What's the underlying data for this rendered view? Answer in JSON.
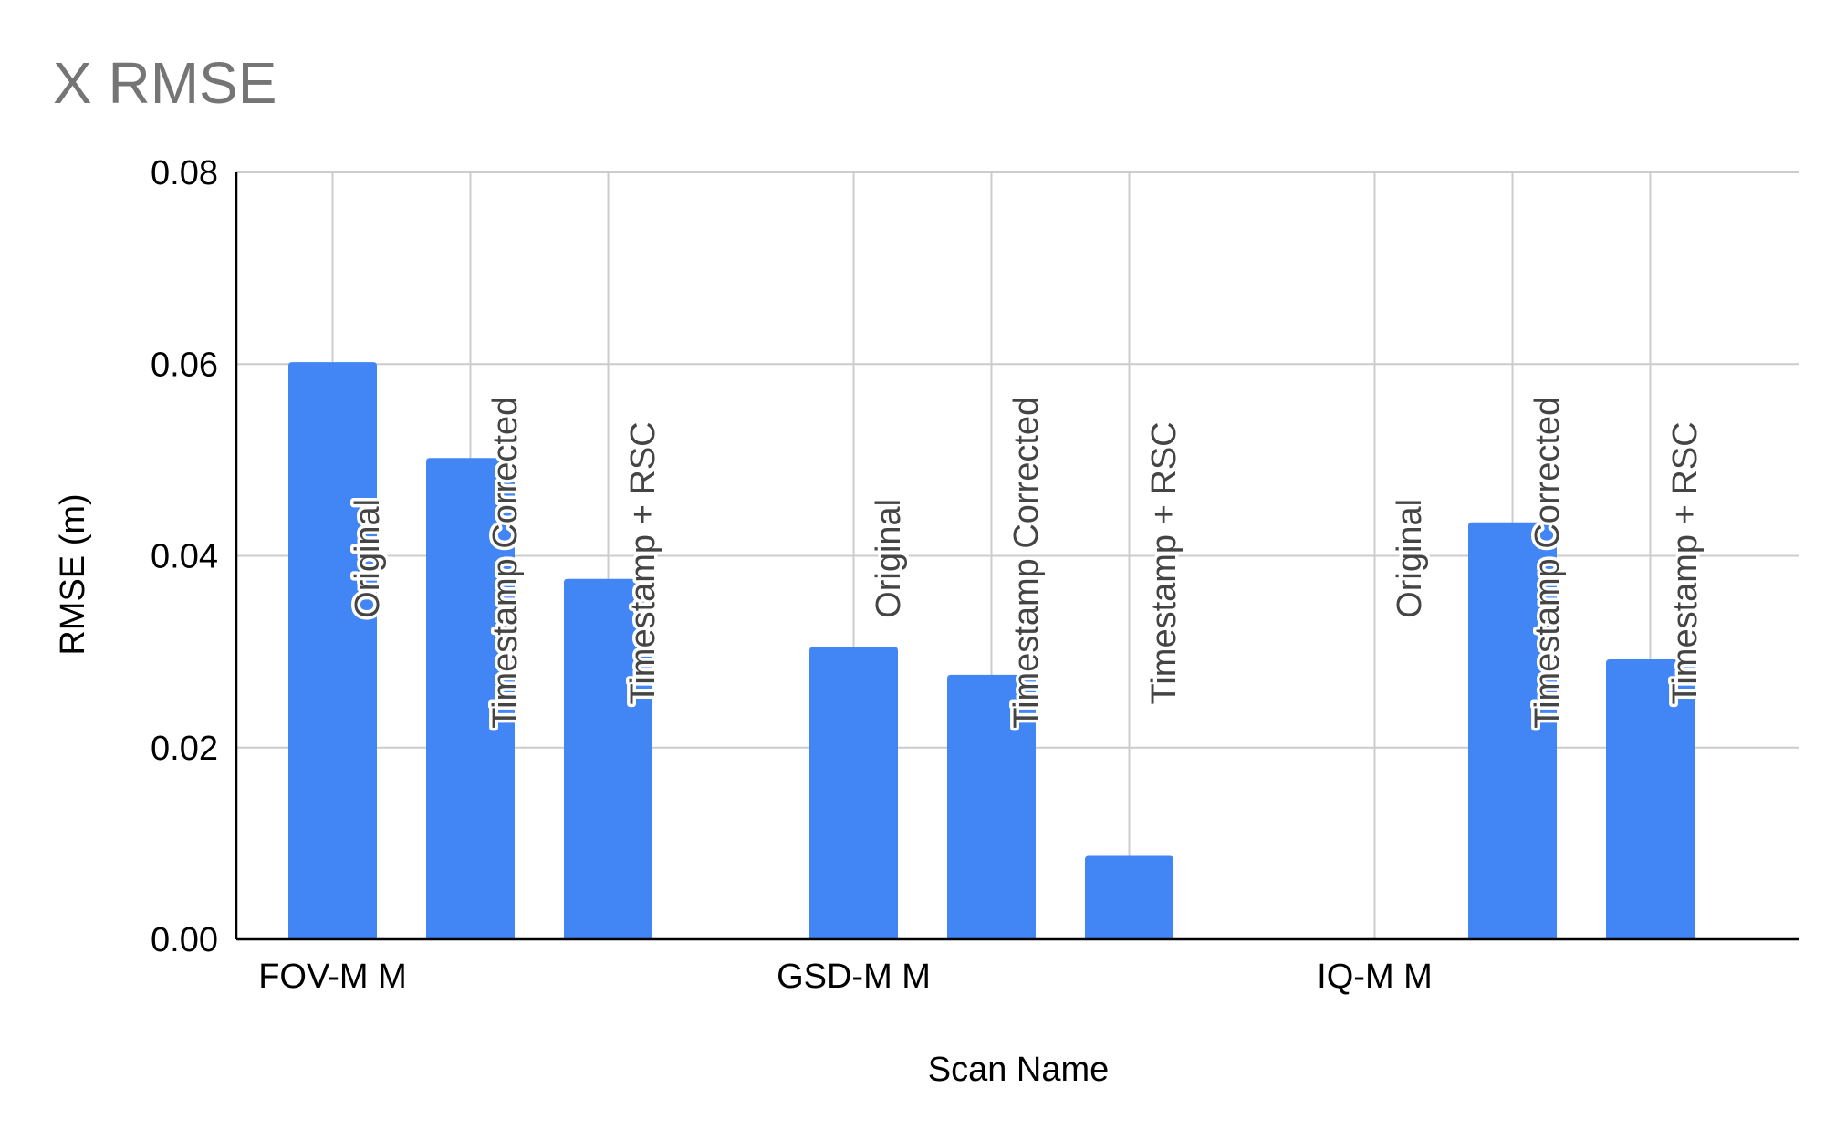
{
  "chart_data": {
    "type": "bar",
    "title": "X RMSE",
    "xlabel": "Scan Name",
    "ylabel": "RMSE (m)",
    "ylim": [
      0,
      0.08
    ],
    "yticks": [
      "0.00",
      "0.02",
      "0.04",
      "0.06",
      "0.08"
    ],
    "ytick_values": [
      0,
      0.02,
      0.04,
      0.06,
      0.08
    ],
    "grid": true,
    "legend": "none",
    "bar_color": "#4285f4",
    "categories": [
      "FOV-M M",
      "GSD-M M",
      "IQ-M M"
    ],
    "series": [
      {
        "name": "Original",
        "values": [
          0.0602,
          0.0305,
          0.0
        ]
      },
      {
        "name": "Timestamp Corrected",
        "values": [
          0.0502,
          0.0276,
          0.0435
        ]
      },
      {
        "name": "Timestamp + RSC",
        "values": [
          0.0376,
          0.0087,
          0.0292
        ]
      }
    ]
  }
}
